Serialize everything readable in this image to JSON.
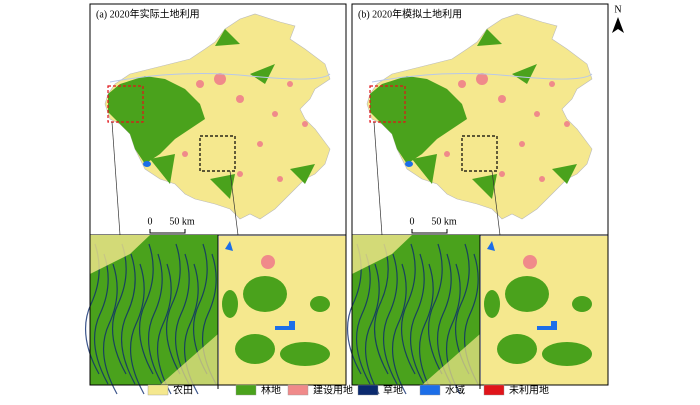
{
  "panels": [
    {
      "title": "(a) 2020年实际土地利用",
      "scale_start": "0",
      "scale_end": "50 km"
    },
    {
      "title": "(b) 2020年模拟土地利用",
      "scale_start": "0",
      "scale_end": "50 km"
    }
  ],
  "north": "N",
  "legend": [
    {
      "label": "农田",
      "color": "#f5e88e"
    },
    {
      "label": "林地",
      "color": "#4aa21c"
    },
    {
      "label": "建设用地",
      "color": "#f08a8a"
    },
    {
      "label": "草地",
      "color": "#0b2a6e"
    },
    {
      "label": "水域",
      "color": "#1c6ee8"
    },
    {
      "label": "未利用地",
      "color": "#e0141a"
    }
  ]
}
